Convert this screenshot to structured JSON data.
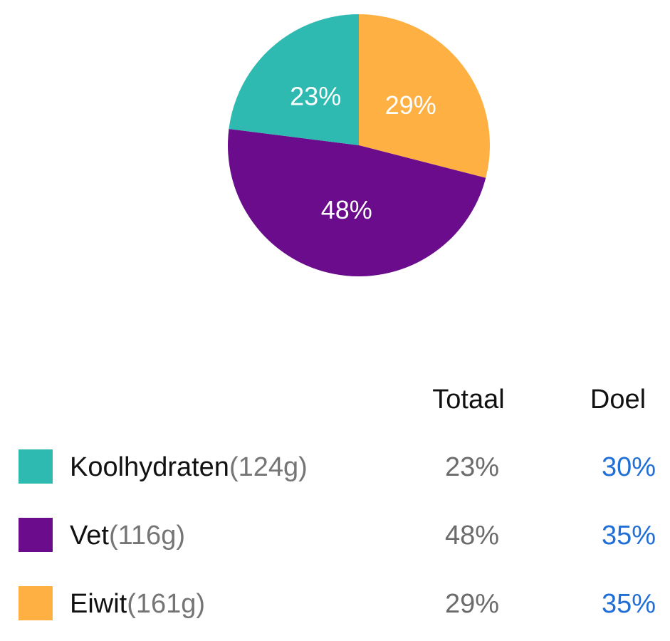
{
  "chart_data": {
    "type": "pie",
    "slices": [
      {
        "name": "Koolhydraten",
        "value": 23,
        "label": "23%",
        "color": "#2EBAB1"
      },
      {
        "name": "Vet",
        "value": 48,
        "label": "48%",
        "color": "#6A0C8B"
      },
      {
        "name": "Eiwit",
        "value": 29,
        "label": "29%",
        "color": "#FFB042"
      }
    ]
  },
  "table": {
    "headers": {
      "total": "Totaal",
      "goal": "Doel"
    },
    "rows": [
      {
        "name": "Koolhydraten",
        "grams": "(124g)",
        "total": "23%",
        "goal": "30%",
        "color": "#2EBAB1"
      },
      {
        "name": "Vet",
        "grams": "(116g)",
        "total": "48%",
        "goal": "35%",
        "color": "#6A0C8B"
      },
      {
        "name": "Eiwit",
        "grams": "(161g)",
        "total": "29%",
        "goal": "35%",
        "color": "#FFB042"
      }
    ]
  }
}
